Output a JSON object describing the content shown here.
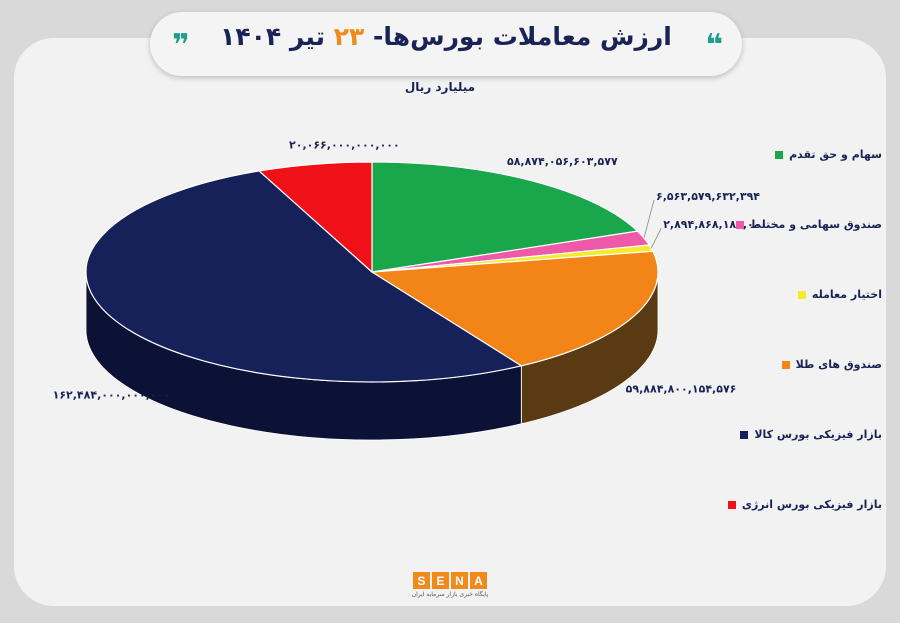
{
  "header": {
    "title_main": "ارزش معاملات بورس‌ها-",
    "title_day": "۲۳",
    "title_month": "تیر",
    "title_year": "۱۴۰۴",
    "subtitle": "میلیارد ریال"
  },
  "colors": {
    "navy": "#1a2356",
    "orange": "#f08a1a",
    "teal": "#1f9e8e"
  },
  "chart_data": {
    "type": "pie",
    "unit": "میلیارد ریال",
    "legend_position": "right",
    "slices": [
      {
        "name": "سهام و حق تقدم",
        "value": 58874056603577,
        "label": "۵۸,۸۷۴,۰۵۶,۶۰۳,۵۷۷",
        "color": "#1aa64a",
        "side": "#11703a"
      },
      {
        "name": "صندوق سهامی و مختلط",
        "value": 6563579632394,
        "label": "۶,۵۶۳,۵۷۹,۶۳۲,۳۹۴",
        "color": "#ee5aa8",
        "side": "#a83878"
      },
      {
        "name": "اختیار معامله",
        "value": 2894868183000,
        "label": "۲,۸۹۴,۸۶۸,۱۸۳,۰۰۰",
        "color": "#f4ec2a",
        "side": "#b0a81c"
      },
      {
        "name": "صندوق های طلا",
        "value": 59884800154576,
        "label": "۵۹,۸۸۴,۸۰۰,۱۵۴,۵۷۶",
        "color": "#f28418",
        "side": "#5a3a12"
      },
      {
        "name": "بازار فیزیکی بورس کالا",
        "value": 162484000000000,
        "label": "۱۶۲,۴۸۴,۰۰۰,۰۰۰,۰۰۰",
        "color": "#16215a",
        "side": "#0c1236"
      },
      {
        "name": "بازار فیزیکی بورس انرژی",
        "value": 20066000000000,
        "label": "۲۰,۰۶۶,۰۰۰,۰۰۰,۰۰۰",
        "color": "#f01018",
        "side": "#8a0a0e"
      }
    ]
  },
  "logo": {
    "letters": [
      "S",
      "E",
      "N",
      "A"
    ],
    "tagline": "پایگاه خبری بازار سرمایه ایران"
  }
}
